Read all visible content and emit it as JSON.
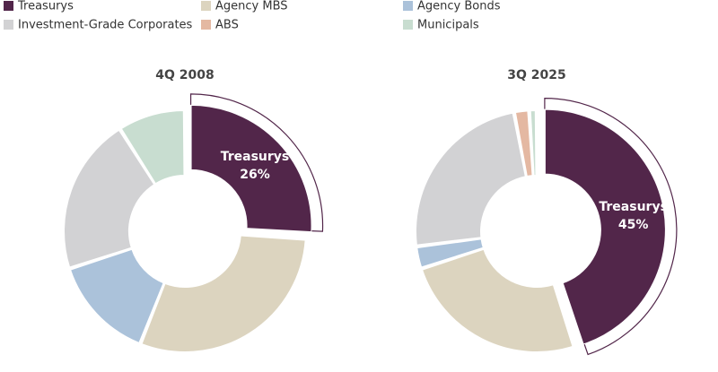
{
  "chart_data": [
    {
      "type": "pie",
      "title": "4Q 2008",
      "categories": [
        "Treasurys",
        "Agency MBS",
        "Agency Bonds",
        "Investment-Grade Corporates",
        "ABS",
        "Municipals"
      ],
      "values": [
        26,
        30,
        14,
        21,
        0,
        9
      ],
      "value_labels": [
        "26%",
        null,
        null,
        null,
        null,
        null
      ],
      "colors": [
        "#52264a",
        "#dcd4bf",
        "#abc2da",
        "#d2d2d4",
        "#e4b8a2",
        "#c8ddd0"
      ]
    },
    {
      "type": "pie",
      "title": "3Q 2025",
      "categories": [
        "Treasurys",
        "Agency MBS",
        "Agency Bonds",
        "Investment-Grade Corporates",
        "ABS",
        "Municipals"
      ],
      "values": [
        45,
        25,
        3,
        24,
        2,
        1
      ],
      "value_labels": [
        "45%",
        null,
        null,
        null,
        null,
        null
      ],
      "colors": [
        "#52264a",
        "#dcd4bf",
        "#abc2da",
        "#d2d2d4",
        "#e4b8a2",
        "#c8ddd0"
      ]
    }
  ]
}
